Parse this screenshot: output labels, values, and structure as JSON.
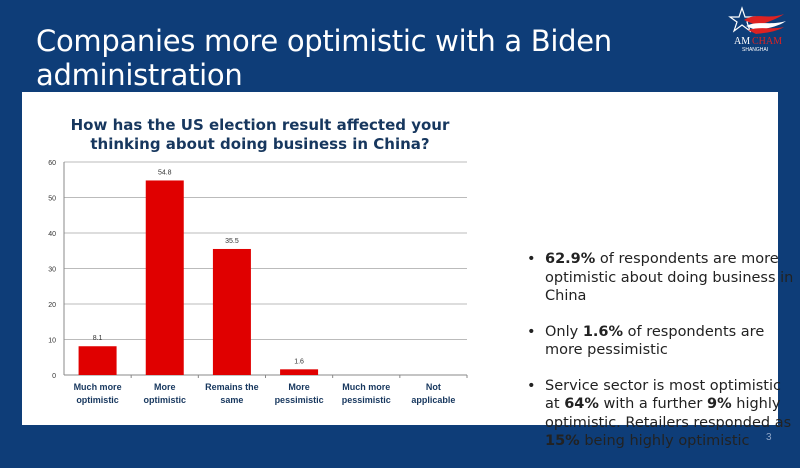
{
  "slide": {
    "title": "Companies more optimistic with a Biden administration",
    "logo_text": "AMCHAM SHANGHAI",
    "page_number": "3",
    "background_color": "#0e3d78"
  },
  "bullets": [
    {
      "bold": "62.9%",
      "text": " of respondents are more optimistic about doing business in China"
    },
    {
      "pre": "Only ",
      "bold": "1.6%",
      "text": " of respondents are more pessimistic"
    },
    {
      "pre": "Service sector is most optimistic at ",
      "bold": "64%",
      "mid": " with a further ",
      "bold2": "9%",
      "mid2": " highly optimistic. Retailers responded as ",
      "bold3": "15%",
      "text": " being highly optimistic"
    }
  ],
  "chart_data": {
    "type": "bar",
    "title": "How has the US election result affected your thinking about doing business in China?",
    "categories": [
      "Much more optimistic",
      "More optimistic",
      "Remains the same",
      "More pessimistic",
      "Much more pessimistic",
      "Not applicable"
    ],
    "values": [
      8.1,
      54.8,
      35.5,
      1.6,
      null,
      null
    ],
    "data_labels": [
      "8.1",
      "54.8",
      "35.5",
      "1.6",
      "",
      ""
    ],
    "ylim": [
      0,
      60
    ],
    "yticks": [
      0,
      10,
      20,
      30,
      40,
      50,
      60
    ],
    "grid": true,
    "bar_color": "#e00000",
    "title_color": "#17375e"
  }
}
